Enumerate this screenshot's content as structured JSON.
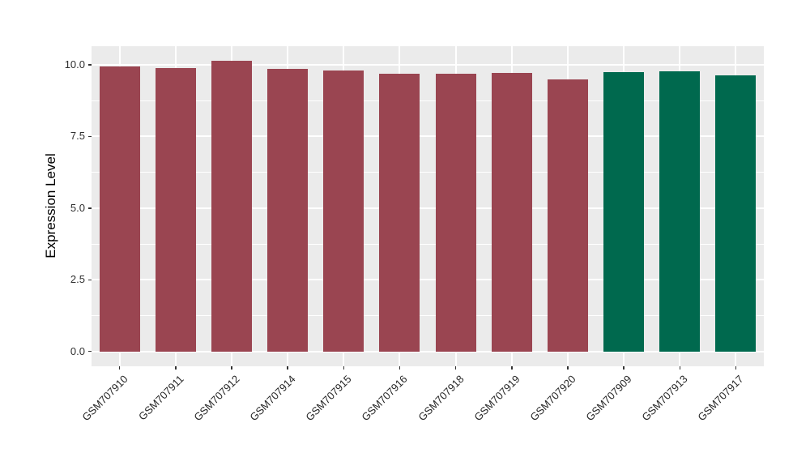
{
  "figure": {
    "background": "#FFFFFF",
    "panel_background": "#EBEBEB",
    "gridline_color": "#FFFFFF",
    "tick_mark_color": "#333333",
    "tick_label_color": "#303030",
    "axis_title_color": "#000000",
    "group_colors": {
      "maroon": "#9A4551",
      "green": "#00694E"
    }
  },
  "chart_data": {
    "type": "bar",
    "title": "",
    "xlabel": "",
    "ylabel": "Expression Level",
    "categories": [
      "GSM707910",
      "GSM707911",
      "GSM707912",
      "GSM707914",
      "GSM707915",
      "GSM707916",
      "GSM707918",
      "GSM707919",
      "GSM707920",
      "GSM707909",
      "GSM707913",
      "GSM707917"
    ],
    "values": [
      9.95,
      9.88,
      10.14,
      9.86,
      9.8,
      9.68,
      9.7,
      9.72,
      9.49,
      9.75,
      9.78,
      9.63
    ],
    "bar_colors": [
      "#9A4551",
      "#9A4551",
      "#9A4551",
      "#9A4551",
      "#9A4551",
      "#9A4551",
      "#9A4551",
      "#9A4551",
      "#9A4551",
      "#00694E",
      "#00694E",
      "#00694E"
    ],
    "ylim": [
      -0.52,
      10.65
    ],
    "yticks": [
      0.0,
      2.5,
      5.0,
      7.5,
      10.0
    ],
    "ytick_labels": [
      "0.0",
      "2.5",
      "5.0",
      "7.5",
      "10.0"
    ],
    "yminor": [
      1.25,
      3.75,
      6.25,
      8.75
    ],
    "grid": true,
    "legend": "none"
  }
}
